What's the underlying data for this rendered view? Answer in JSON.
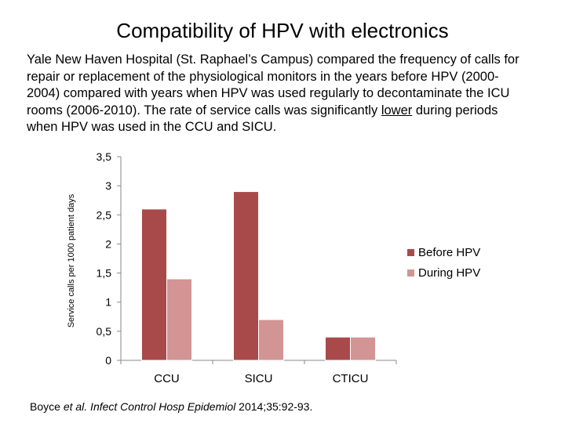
{
  "slide": {
    "title": "Compatibility of HPV with electronics",
    "body_before": "Yale New Haven Hospital (St. Raphael’s Campus) compared the frequency of calls for repair or replacement of the physiological monitors in the years before HPV (2000-2004) compared with years when HPV was used regularly to decontaminate the ICU rooms (2006-2010). The rate of service calls was significantly ",
    "body_underlined": "lower",
    "body_after": " during periods when HPV was used in the CCU and SICU.",
    "citation_author": "Boyce ",
    "citation_etal": "et al. Infect Control Hosp Epidemiol",
    "citation_rest": " 2014;35:92-93."
  },
  "colors": {
    "before": "#a94a4a",
    "during": "#d39494",
    "axis": "#888888"
  },
  "chart_data": {
    "type": "bar",
    "title": "",
    "xlabel": "",
    "ylabel": "Service calls per 1000 patient days",
    "categories": [
      "CCU",
      "SICU",
      "CTICU"
    ],
    "series": [
      {
        "name": "Before HPV",
        "values": [
          2.6,
          2.9,
          0.4
        ]
      },
      {
        "name": "During HPV",
        "values": [
          1.4,
          0.7,
          0.4
        ]
      }
    ],
    "ylim": [
      0,
      3.5
    ],
    "yticks": [
      "0",
      "0,5",
      "1",
      "1,5",
      "2",
      "2,5",
      "3",
      "3,5"
    ],
    "grid": false,
    "legend_position": "right"
  }
}
